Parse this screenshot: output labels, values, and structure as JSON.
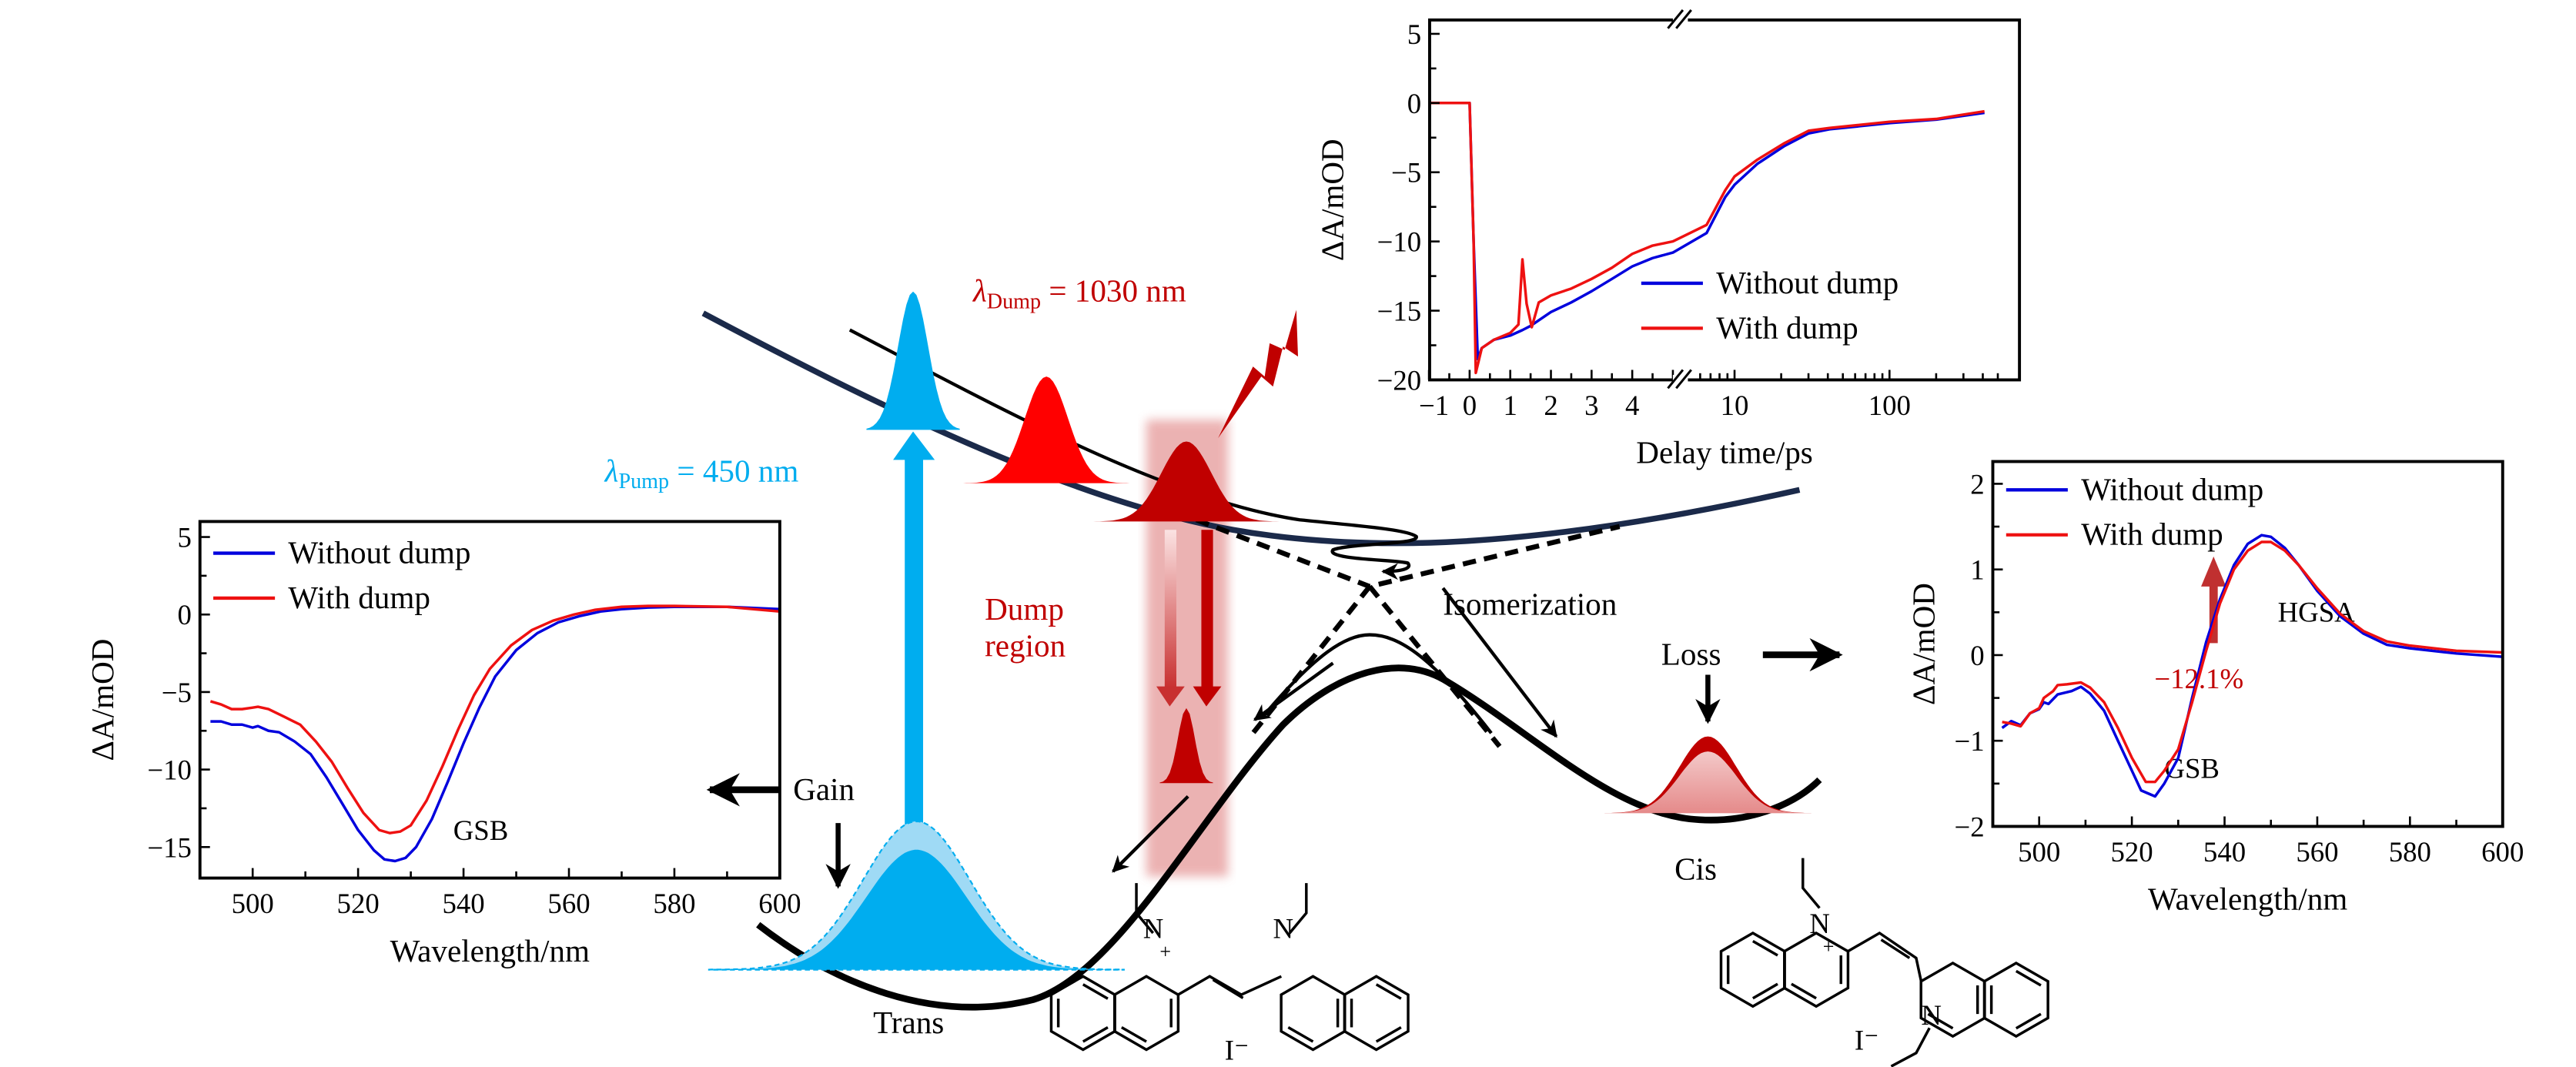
{
  "colors": {
    "pump": "#00adef",
    "dump": "#ff0000",
    "dump_dark": "#c00000",
    "without_dump": "#0000dd",
    "with_dump": "#ee1111",
    "upper_surface": "#1b2a4a"
  },
  "labels": {
    "pump_lambda": "λ",
    "pump_sub": "Pump",
    "pump_value": " = 450 nm",
    "dump_lambda": "λ",
    "dump_sub": "Dump",
    "dump_value": " = 1030 nm",
    "dump_region_1": "Dump",
    "dump_region_2": "region",
    "isomerization": "Isomerization",
    "loss": "Loss",
    "gain": "Gain",
    "cis": "Cis",
    "trans": "Trans",
    "atom_n": "N",
    "charge_plus": "+",
    "iodide": "I⁻"
  },
  "chart_data": [
    {
      "id": "left",
      "type": "line",
      "xlabel": "Wavelength/nm",
      "ylabel": "ΔA/mOD",
      "xlim": [
        490,
        600
      ],
      "ylim": [
        -17,
        6
      ],
      "xticks": [
        500,
        520,
        540,
        560,
        580,
        600
      ],
      "yticks": [
        5,
        0,
        -5,
        -10,
        -15
      ],
      "tick_labels_x": [
        "500",
        "520",
        "540",
        "560",
        "580",
        "600"
      ],
      "tick_labels_y": [
        "5",
        "0",
        "−5",
        "−10",
        "−15"
      ],
      "legend": "top-left",
      "annotation": "GSB",
      "series": [
        {
          "name": "Without dump",
          "color": "#0000dd",
          "x": [
            492,
            494,
            496,
            498,
            500,
            501,
            503,
            505,
            508,
            511,
            514,
            517,
            520,
            523,
            525,
            527,
            529,
            531,
            534,
            537,
            540,
            543,
            546,
            550,
            554,
            558,
            562,
            566,
            570,
            575,
            580,
            590,
            600
          ],
          "y": [
            -6.9,
            -6.9,
            -7.1,
            -7.1,
            -7.3,
            -7.2,
            -7.5,
            -7.6,
            -8.2,
            -9.0,
            -10.5,
            -12.2,
            -13.9,
            -15.2,
            -15.8,
            -15.9,
            -15.7,
            -15.0,
            -13.2,
            -10.8,
            -8.3,
            -6.0,
            -4.0,
            -2.3,
            -1.2,
            -0.5,
            -0.1,
            0.2,
            0.35,
            0.45,
            0.5,
            0.5,
            0.35
          ]
        },
        {
          "name": "With dump",
          "color": "#ee1111",
          "x": [
            492,
            494,
            496,
            498,
            500,
            501,
            503,
            506,
            509,
            512,
            515,
            518,
            521,
            524,
            526,
            528,
            530,
            533,
            536,
            539,
            542,
            545,
            549,
            553,
            557,
            561,
            565,
            570,
            575,
            580,
            590,
            600
          ],
          "y": [
            -5.6,
            -5.8,
            -6.1,
            -6.1,
            -6.0,
            -5.95,
            -6.1,
            -6.6,
            -7.1,
            -8.2,
            -9.5,
            -11.2,
            -12.8,
            -13.9,
            -14.1,
            -14.0,
            -13.6,
            -12.0,
            -9.8,
            -7.4,
            -5.2,
            -3.5,
            -2.0,
            -1.0,
            -0.4,
            0.0,
            0.3,
            0.5,
            0.55,
            0.55,
            0.5,
            0.2
          ]
        }
      ]
    },
    {
      "id": "top",
      "type": "line",
      "xlabel": "Delay time/ps",
      "ylabel": "ΔA/mOD",
      "x_scale": "linear -1 to 5 ps, broken axis, then log to 500 ps",
      "xlim": [
        -1,
        500
      ],
      "ylim": [
        -20,
        6
      ],
      "xticks": [
        -1,
        0,
        1,
        2,
        3,
        4,
        10,
        100
      ],
      "yticks": [
        5,
        0,
        -5,
        -10,
        -15,
        -20
      ],
      "tick_labels_x": [
        "−1",
        "0",
        "1",
        "2",
        "3",
        "4",
        "10",
        "100"
      ],
      "tick_labels_y": [
        "5",
        "0",
        "−5",
        "−10",
        "−15",
        "−20"
      ],
      "legend": "bottom-right",
      "series": [
        {
          "name": "Without dump",
          "color": "#0000dd",
          "x": [
            -1,
            -0.5,
            0,
            0.1,
            0.2,
            0.3,
            0.6,
            1.0,
            1.3,
            1.5,
            2,
            2.5,
            3,
            3.5,
            4,
            4.5,
            5,
            6.6,
            8.7,
            10,
            14,
            21,
            30,
            41,
            100,
            200,
            410
          ],
          "y": [
            0,
            0,
            0,
            -10,
            -18.5,
            -17.7,
            -17.1,
            -16.8,
            -16.4,
            -16.1,
            -15.1,
            -14.4,
            -13.6,
            -12.7,
            -11.8,
            -11.2,
            -10.8,
            -9.4,
            -6.8,
            -5.9,
            -4.4,
            -3.1,
            -2.2,
            -1.9,
            -1.45,
            -1.2,
            -0.7
          ]
        },
        {
          "name": "With dump",
          "color": "#ee1111",
          "x": [
            -1,
            -0.5,
            0,
            0.1,
            0.15,
            0.3,
            0.6,
            1.0,
            1.2,
            1.3,
            1.4,
            1.53,
            1.7,
            2,
            2.5,
            3,
            3.5,
            4,
            4.5,
            5,
            6.6,
            8.7,
            10,
            14,
            21,
            30,
            41,
            100,
            200,
            410
          ],
          "y": [
            0,
            0,
            0,
            -10,
            -19.5,
            -17.7,
            -17.1,
            -16.6,
            -16.0,
            -11.3,
            -14.5,
            -16.2,
            -14.4,
            -13.9,
            -13.4,
            -12.7,
            -11.9,
            -10.9,
            -10.3,
            -10.0,
            -8.8,
            -6.3,
            -5.3,
            -4.1,
            -2.9,
            -2.0,
            -1.8,
            -1.35,
            -1.15,
            -0.6
          ]
        }
      ]
    },
    {
      "id": "right",
      "type": "line",
      "xlabel": "Wavelength/nm",
      "ylabel": "ΔA/mOD",
      "xlim": [
        490,
        600
      ],
      "ylim": [
        -2,
        2.26
      ],
      "xticks": [
        500,
        520,
        540,
        560,
        580,
        600
      ],
      "yticks": [
        2,
        1,
        0,
        -1,
        -2
      ],
      "tick_labels_x": [
        "500",
        "520",
        "540",
        "560",
        "580",
        "600"
      ],
      "tick_labels_y": [
        "2",
        "1",
        "0",
        "−1",
        "−2"
      ],
      "legend": "top-left",
      "annotations": [
        "HGSA",
        "GSB",
        "−12.1%"
      ],
      "series": [
        {
          "name": "Without dump",
          "color": "#0000dd",
          "x": [
            492,
            494,
            496,
            498,
            500,
            501,
            502,
            504,
            507,
            509,
            511,
            514,
            517,
            520,
            522,
            525,
            527,
            530,
            533,
            536,
            539,
            542,
            545,
            548,
            550,
            553,
            556,
            560,
            565,
            570,
            575,
            580,
            590,
            600
          ],
          "y": [
            -0.85,
            -0.77,
            -0.82,
            -0.68,
            -0.63,
            -0.55,
            -0.57,
            -0.46,
            -0.42,
            -0.37,
            -0.45,
            -0.65,
            -1.0,
            -1.35,
            -1.58,
            -1.65,
            -1.5,
            -1.2,
            -0.5,
            0.15,
            0.65,
            1.05,
            1.3,
            1.4,
            1.38,
            1.25,
            1.05,
            0.75,
            0.45,
            0.25,
            0.12,
            0.08,
            0.02,
            -0.02
          ]
        },
        {
          "name": "With dump",
          "color": "#ee1111",
          "x": [
            492,
            494,
            496,
            498,
            500,
            501,
            503,
            504,
            506,
            509,
            511,
            514,
            517,
            520,
            523,
            525,
            527,
            530,
            533,
            536,
            539,
            542,
            545,
            548,
            550,
            553,
            556,
            560,
            565,
            570,
            575,
            580,
            590,
            600
          ],
          "y": [
            -0.78,
            -0.8,
            -0.83,
            -0.68,
            -0.62,
            -0.5,
            -0.42,
            -0.35,
            -0.34,
            -0.32,
            -0.38,
            -0.55,
            -0.85,
            -1.2,
            -1.48,
            -1.48,
            -1.35,
            -1.1,
            -0.55,
            0.05,
            0.6,
            1.0,
            1.22,
            1.32,
            1.32,
            1.22,
            1.05,
            0.78,
            0.48,
            0.28,
            0.16,
            0.11,
            0.05,
            0.03
          ]
        }
      ]
    }
  ]
}
